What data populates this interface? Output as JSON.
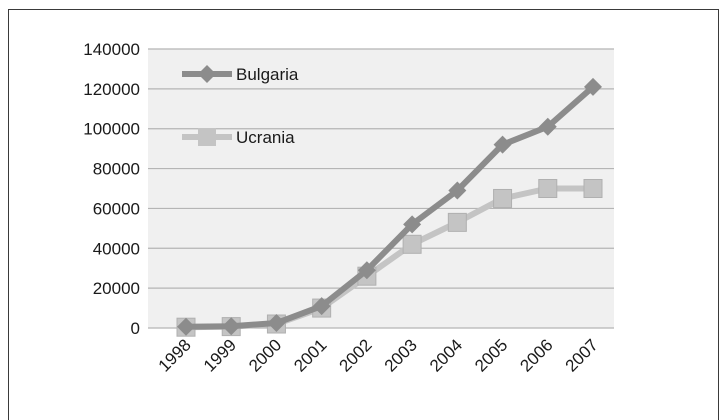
{
  "chart_data": {
    "type": "line",
    "title": "",
    "xlabel": "",
    "ylabel": "",
    "categories": [
      "1998",
      "1999",
      "2000",
      "2001",
      "2002",
      "2003",
      "2004",
      "2005",
      "2006",
      "2007"
    ],
    "ylim": [
      0,
      140000
    ],
    "yticks": [
      "0",
      "20000",
      "40000",
      "60000",
      "80000",
      "100000",
      "120000",
      "140000"
    ],
    "grid": true,
    "legend_position": "top-left",
    "series": [
      {
        "name": "Bulgaria",
        "marker": "diamond",
        "color": "#8c8c8c",
        "values": [
          600,
          900,
          2500,
          11000,
          29000,
          52000,
          69000,
          92000,
          101000,
          121000
        ]
      },
      {
        "name": "Ucrania",
        "marker": "square",
        "color": "#c4c4c4",
        "values": [
          400,
          700,
          2000,
          10000,
          26000,
          42000,
          53000,
          65000,
          70000,
          70000
        ]
      }
    ]
  },
  "colors": {
    "plot_background": "#f0f0f0",
    "gridline": "#b5b5b5",
    "frame": "#3a3a3a"
  }
}
